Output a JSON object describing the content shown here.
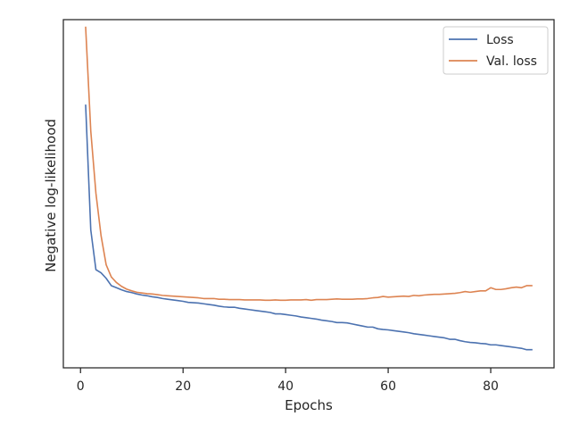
{
  "chart_data": {
    "type": "line",
    "title": "",
    "xlabel": "Epochs",
    "ylabel": "Negative log-likelihood",
    "xlim": [
      -3.35,
      92.35
    ],
    "ylim": [
      0.0,
      1.0
    ],
    "xticks": [
      0,
      20,
      40,
      60,
      80
    ],
    "yticks": [],
    "grid": false,
    "legend": {
      "placement": "top-right"
    },
    "colors": {
      "loss": "#4c72b0",
      "val_loss": "#dd8452"
    },
    "x": [
      1,
      2,
      3,
      4,
      5,
      6,
      7,
      8,
      9,
      10,
      11,
      12,
      13,
      14,
      15,
      16,
      17,
      18,
      19,
      20,
      21,
      22,
      23,
      24,
      25,
      26,
      27,
      28,
      29,
      30,
      31,
      32,
      33,
      34,
      35,
      36,
      37,
      38,
      39,
      40,
      41,
      42,
      43,
      44,
      45,
      46,
      47,
      48,
      49,
      50,
      51,
      52,
      53,
      54,
      55,
      56,
      57,
      58,
      59,
      60,
      61,
      62,
      63,
      64,
      65,
      66,
      67,
      68,
      69,
      70,
      71,
      72,
      73,
      74,
      75,
      76,
      77,
      78,
      79,
      80,
      81,
      82,
      83,
      84,
      85,
      86,
      87,
      88
    ],
    "series": [
      {
        "name": "Loss",
        "values": [
          0.754,
          0.396,
          0.282,
          0.273,
          0.257,
          0.236,
          0.23,
          0.224,
          0.219,
          0.216,
          0.212,
          0.209,
          0.207,
          0.204,
          0.202,
          0.199,
          0.197,
          0.195,
          0.193,
          0.191,
          0.188,
          0.187,
          0.186,
          0.184,
          0.182,
          0.18,
          0.177,
          0.175,
          0.174,
          0.174,
          0.171,
          0.169,
          0.167,
          0.165,
          0.163,
          0.161,
          0.159,
          0.155,
          0.155,
          0.153,
          0.151,
          0.149,
          0.146,
          0.144,
          0.142,
          0.14,
          0.137,
          0.135,
          0.133,
          0.13,
          0.13,
          0.129,
          0.126,
          0.123,
          0.12,
          0.117,
          0.117,
          0.112,
          0.11,
          0.109,
          0.107,
          0.105,
          0.103,
          0.101,
          0.098,
          0.096,
          0.094,
          0.092,
          0.09,
          0.088,
          0.086,
          0.082,
          0.082,
          0.078,
          0.075,
          0.073,
          0.072,
          0.07,
          0.069,
          0.066,
          0.066,
          0.064,
          0.062,
          0.06,
          0.058,
          0.056,
          0.052,
          0.052
        ]
      },
      {
        "name": "Val. loss",
        "values": [
          0.978,
          0.68,
          0.502,
          0.38,
          0.296,
          0.261,
          0.245,
          0.234,
          0.226,
          0.221,
          0.217,
          0.215,
          0.213,
          0.212,
          0.21,
          0.208,
          0.207,
          0.206,
          0.205,
          0.204,
          0.203,
          0.202,
          0.201,
          0.199,
          0.199,
          0.199,
          0.197,
          0.197,
          0.196,
          0.196,
          0.196,
          0.195,
          0.195,
          0.195,
          0.195,
          0.194,
          0.194,
          0.195,
          0.194,
          0.194,
          0.195,
          0.195,
          0.195,
          0.196,
          0.194,
          0.196,
          0.196,
          0.196,
          0.197,
          0.198,
          0.197,
          0.197,
          0.197,
          0.198,
          0.198,
          0.199,
          0.201,
          0.202,
          0.205,
          0.203,
          0.204,
          0.205,
          0.206,
          0.205,
          0.208,
          0.207,
          0.209,
          0.21,
          0.211,
          0.211,
          0.212,
          0.213,
          0.214,
          0.216,
          0.219,
          0.217,
          0.219,
          0.221,
          0.221,
          0.23,
          0.225,
          0.225,
          0.227,
          0.23,
          0.232,
          0.23,
          0.236,
          0.236
        ]
      }
    ]
  }
}
